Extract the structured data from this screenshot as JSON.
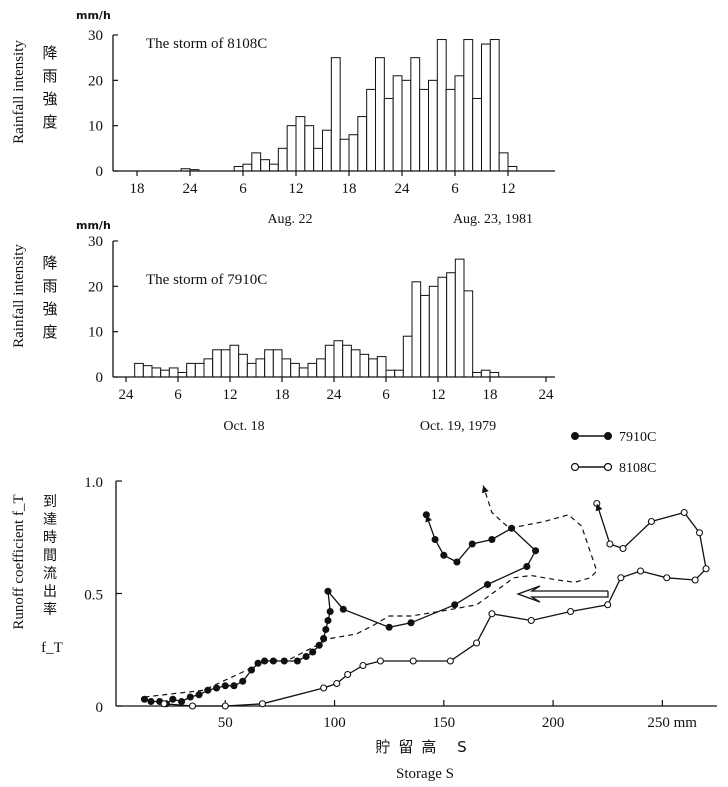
{
  "chart_data": [
    {
      "type": "bar",
      "title": "The storm of 8108C",
      "ylabel": "Rainfall intensity",
      "ylabel_jp": "降雨強度",
      "unit": "mm/h",
      "ylim": [
        0,
        30
      ],
      "yticks": [
        0,
        10,
        20,
        30
      ],
      "xticks": [
        "18",
        "24",
        "6",
        "12",
        "18",
        "24",
        "6",
        "12"
      ],
      "date_labels": [
        "Aug. 22",
        "Aug. 23, 1981"
      ],
      "hour_start": 14,
      "values": [
        0,
        0,
        0,
        0,
        0,
        0,
        0,
        0,
        0,
        0.5,
        0.3,
        0,
        0,
        0,
        0,
        1,
        1.5,
        4,
        2.5,
        1.5,
        5,
        10,
        12,
        10,
        5,
        9,
        25,
        7,
        8,
        12,
        18,
        25,
        16,
        21,
        20,
        25,
        18,
        20,
        29,
        18,
        21,
        29,
        16,
        28,
        29,
        4,
        1,
        0,
        0,
        0
      ]
    },
    {
      "type": "bar",
      "title": "The storm of 7910C",
      "ylabel": "Rainfall intensity",
      "ylabel_jp": "降雨強度",
      "unit": "mm/h",
      "ylim": [
        0,
        30
      ],
      "yticks": [
        0,
        10,
        20,
        30
      ],
      "xticks": [
        "24",
        "6",
        "12",
        "18",
        "24",
        "6",
        "12",
        "18",
        "24"
      ],
      "date_labels": [
        "Oct. 18",
        "Oct. 19, 1979"
      ],
      "hour_start": 0,
      "values": [
        0,
        3,
        2.5,
        2,
        1.5,
        2,
        1,
        3,
        3,
        4,
        6,
        6,
        7,
        5,
        3,
        4,
        6,
        6,
        4,
        3,
        2,
        3,
        4,
        7,
        8,
        7,
        6,
        5,
        4,
        4.5,
        1.5,
        1.5,
        9,
        21,
        18,
        20,
        22,
        23,
        26,
        19,
        1,
        1.5,
        1,
        0
      ]
    },
    {
      "type": "line",
      "ylabel": "Runoff coefficient f_T",
      "ylabel_jp": "到達時間流出率",
      "ylabel_symbol": "f_T",
      "xlabel": "Storage S",
      "xlabel_jp": "貯留高 S",
      "xunit": "mm",
      "xlim": [
        0,
        275
      ],
      "ylim": [
        0,
        1.0
      ],
      "xticks": [
        50,
        100,
        150,
        200,
        250
      ],
      "xtick_labels": [
        "50",
        "100",
        "150",
        "200",
        "250 mm"
      ],
      "yticks": [
        0,
        0.5,
        1.0
      ],
      "ytick_labels": [
        "0",
        "0.5",
        "1.0"
      ],
      "series": [
        {
          "name": "7910C",
          "marker": "filled",
          "points": [
            [
              13,
              0.03
            ],
            [
              16,
              0.02
            ],
            [
              20,
              0.02
            ],
            [
              23,
              0.01
            ],
            [
              26,
              0.03
            ],
            [
              30,
              0.02
            ],
            [
              34,
              0.04
            ],
            [
              38,
              0.05
            ],
            [
              42,
              0.07
            ],
            [
              46,
              0.08
            ],
            [
              50,
              0.09
            ],
            [
              54,
              0.09
            ],
            [
              58,
              0.11
            ],
            [
              62,
              0.16
            ],
            [
              65,
              0.19
            ],
            [
              68,
              0.2
            ],
            [
              72,
              0.2
            ],
            [
              77,
              0.2
            ],
            [
              83,
              0.2
            ],
            [
              87,
              0.22
            ],
            [
              90,
              0.24
            ],
            [
              93,
              0.27
            ],
            [
              95,
              0.3
            ],
            [
              96,
              0.34
            ],
            [
              97,
              0.38
            ],
            [
              98,
              0.42
            ],
            [
              97,
              0.51
            ],
            [
              104,
              0.43
            ],
            [
              125,
              0.35
            ],
            [
              135,
              0.37
            ],
            [
              155,
              0.45
            ],
            [
              170,
              0.54
            ],
            [
              188,
              0.62
            ],
            [
              192,
              0.69
            ],
            [
              181,
              0.79
            ],
            [
              172,
              0.74
            ],
            [
              163,
              0.72
            ],
            [
              156,
              0.64
            ],
            [
              150,
              0.67
            ],
            [
              146,
              0.74
            ],
            [
              142,
              0.85
            ]
          ]
        },
        {
          "name": "8108C",
          "marker": "open",
          "points": [
            [
              22,
              0.01
            ],
            [
              35,
              0
            ],
            [
              50,
              0
            ],
            [
              67,
              0.01
            ],
            [
              95,
              0.08
            ],
            [
              101,
              0.1
            ],
            [
              106,
              0.14
            ],
            [
              113,
              0.18
            ],
            [
              121,
              0.2
            ],
            [
              136,
              0.2
            ],
            [
              153,
              0.2
            ],
            [
              165,
              0.28
            ],
            [
              172,
              0.41
            ],
            [
              190,
              0.38
            ],
            [
              208,
              0.42
            ],
            [
              225,
              0.45
            ],
            [
              231,
              0.57
            ],
            [
              240,
              0.6
            ],
            [
              252,
              0.57
            ],
            [
              265,
              0.56
            ],
            [
              270,
              0.61
            ],
            [
              267,
              0.77
            ],
            [
              260,
              0.86
            ],
            [
              245,
              0.82
            ],
            [
              232,
              0.7
            ],
            [
              226,
              0.72
            ],
            [
              220,
              0.9
            ]
          ]
        },
        {
          "name": "",
          "style": "dashed",
          "points": [
            [
              13,
              0.04
            ],
            [
              40,
              0.07
            ],
            [
              60,
              0.16
            ],
            [
              68,
              0.2
            ],
            [
              80,
              0.21
            ],
            [
              98,
              0.3
            ],
            [
              110,
              0.32
            ],
            [
              118,
              0.36
            ],
            [
              125,
              0.4
            ],
            [
              135,
              0.4
            ],
            [
              148,
              0.42
            ],
            [
              165,
              0.45
            ],
            [
              175,
              0.52
            ],
            [
              182,
              0.57
            ],
            [
              190,
              0.58
            ],
            [
              202,
              0.56
            ],
            [
              210,
              0.55
            ],
            [
              217,
              0.57
            ],
            [
              220,
              0.6
            ],
            [
              213,
              0.8
            ],
            [
              207,
              0.85
            ],
            [
              196,
              0.82
            ],
            [
              180,
              0.79
            ],
            [
              172,
              0.86
            ],
            [
              168,
              0.98
            ]
          ]
        }
      ]
    }
  ]
}
